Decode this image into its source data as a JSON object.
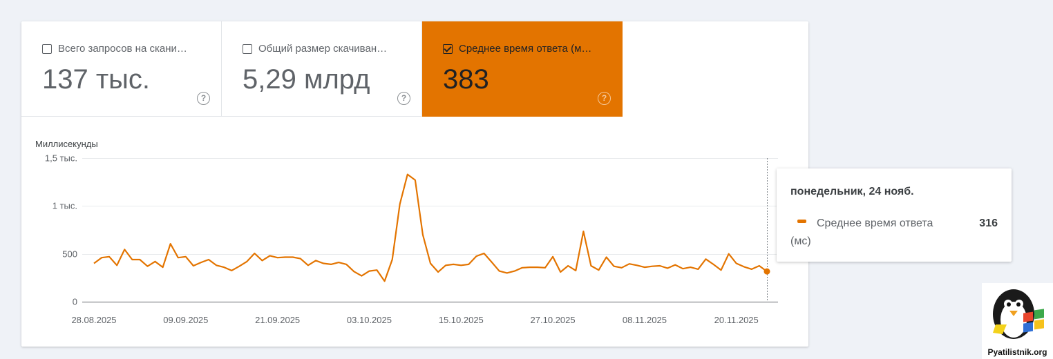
{
  "metrics": [
    {
      "label": "Всего запросов на скани…",
      "value": "137 тыс.",
      "checked": false,
      "help": "?"
    },
    {
      "label": "Общий размер скачиван…",
      "value": "5,29 млрд",
      "checked": false,
      "help": "?"
    },
    {
      "label": "Среднее время ответа (м…",
      "value": "383",
      "checked": true,
      "help": "?"
    }
  ],
  "colors": {
    "accent": "#e37400",
    "page_bg": "#eff2f7",
    "grid": "#e8eaed",
    "axis": "#5f6368"
  },
  "chart_data": {
    "type": "line",
    "ylabel": "Миллисекунды",
    "ylim": [
      0,
      1500
    ],
    "yticks": [
      {
        "value": 0,
        "label": "0"
      },
      {
        "value": 500,
        "label": "500"
      },
      {
        "value": 1000,
        "label": "1 тыс."
      },
      {
        "value": 1500,
        "label": "1,5 тыс."
      }
    ],
    "xticks": [
      "28.08.2025",
      "09.09.2025",
      "21.09.2025",
      "03.10.2025",
      "15.10.2025",
      "27.10.2025",
      "08.11.2025",
      "20.11.2025"
    ],
    "series": [
      {
        "name": "Среднее время ответа (мс)",
        "x": [
          "28.08.2025",
          "29.08.2025",
          "30.08.2025",
          "31.08.2025",
          "01.09.2025",
          "02.09.2025",
          "03.09.2025",
          "04.09.2025",
          "05.09.2025",
          "06.09.2025",
          "07.09.2025",
          "08.09.2025",
          "09.09.2025",
          "10.09.2025",
          "11.09.2025",
          "12.09.2025",
          "13.09.2025",
          "14.09.2025",
          "15.09.2025",
          "16.09.2025",
          "17.09.2025",
          "18.09.2025",
          "19.09.2025",
          "20.09.2025",
          "21.09.2025",
          "22.09.2025",
          "23.09.2025",
          "24.09.2025",
          "25.09.2025",
          "26.09.2025",
          "27.09.2025",
          "28.09.2025",
          "29.09.2025",
          "30.09.2025",
          "01.10.2025",
          "02.10.2025",
          "03.10.2025",
          "04.10.2025",
          "05.10.2025",
          "06.10.2025",
          "07.10.2025",
          "08.10.2025",
          "09.10.2025",
          "10.10.2025",
          "11.10.2025",
          "12.10.2025",
          "13.10.2025",
          "14.10.2025",
          "15.10.2025",
          "16.10.2025",
          "17.10.2025",
          "18.10.2025",
          "19.10.2025",
          "20.10.2025",
          "21.10.2025",
          "22.10.2025",
          "23.10.2025",
          "24.10.2025",
          "25.10.2025",
          "26.10.2025",
          "27.10.2025",
          "28.10.2025",
          "29.10.2025",
          "30.10.2025",
          "31.10.2025",
          "01.11.2025",
          "02.11.2025",
          "03.11.2025",
          "04.11.2025",
          "05.11.2025",
          "06.11.2025",
          "07.11.2025",
          "08.11.2025",
          "09.11.2025",
          "10.11.2025",
          "11.11.2025",
          "12.11.2025",
          "13.11.2025",
          "14.11.2025",
          "15.11.2025",
          "16.11.2025",
          "17.11.2025",
          "18.11.2025",
          "19.11.2025",
          "20.11.2025",
          "21.11.2025",
          "22.11.2025",
          "23.11.2025",
          "24.11.2025"
        ],
        "values": [
          400,
          460,
          470,
          380,
          545,
          440,
          440,
          370,
          420,
          360,
          605,
          460,
          470,
          375,
          410,
          440,
          380,
          360,
          325,
          370,
          420,
          505,
          430,
          480,
          460,
          465,
          465,
          450,
          380,
          430,
          400,
          390,
          410,
          390,
          315,
          270,
          320,
          330,
          215,
          440,
          1020,
          1330,
          1270,
          700,
          400,
          310,
          380,
          390,
          380,
          390,
          475,
          505,
          415,
          320,
          300,
          320,
          355,
          360,
          360,
          355,
          470,
          310,
          375,
          325,
          735,
          375,
          330,
          465,
          370,
          355,
          395,
          380,
          360,
          370,
          375,
          350,
          385,
          345,
          360,
          340,
          445,
          390,
          330,
          500,
          400,
          365,
          340,
          375,
          316
        ]
      }
    ],
    "tooltip": {
      "date": "понедельник, 24 нояб.",
      "series": "Среднее время ответа (мс)",
      "value": "316"
    }
  },
  "watermark": {
    "text": "Pyatilistnik.org"
  }
}
